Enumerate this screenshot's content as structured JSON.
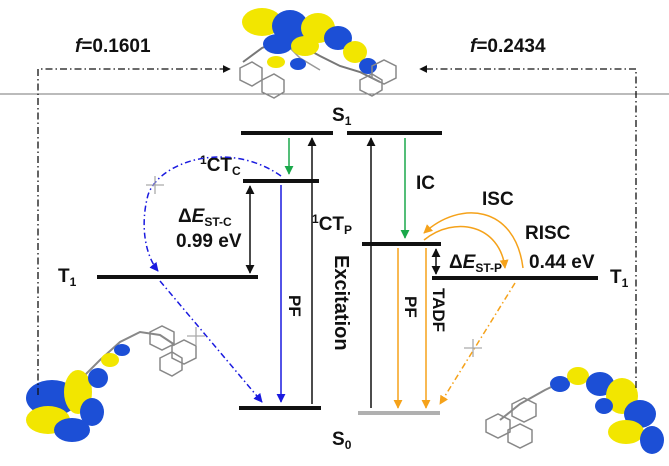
{
  "oscillator": {
    "left": {
      "symbol": "f",
      "value": "=0.1601"
    },
    "right": {
      "symbol": "f",
      "value": "=0.2434"
    }
  },
  "states": {
    "s1_main": "S",
    "s1_sub": "1",
    "s0_main": "S",
    "s0_sub": "0",
    "t1_left_main": "T",
    "t1_left_sub": "1",
    "t1_right_main": "T",
    "t1_right_sub": "1",
    "ct_c_sup": "1",
    "ct_c_main": "CT",
    "ct_c_sub": "C",
    "ct_p_sup": "1",
    "ct_p_main": "CT",
    "ct_p_sub": "P"
  },
  "gaps": {
    "left": {
      "delta": "Δ",
      "e": "E",
      "sub": "ST-C",
      "value": "0.99 eV"
    },
    "right": {
      "delta": "Δ",
      "e": "E",
      "sub": "ST-P",
      "value": "0.44 eV"
    }
  },
  "processes": {
    "excitation": "Excitation",
    "ic": "IC",
    "isc": "ISC",
    "risc": "RISC",
    "pf_left": "PF",
    "pf_right": "PF",
    "tadf": "TADF"
  },
  "colors": {
    "blue": "#1a1adf",
    "green": "#1aa84a",
    "orange": "#f5a21a",
    "black": "#111111",
    "gray": "#b0b0b0",
    "orbital_yellow": "#f2e600",
    "orbital_blue": "#1c4fd6"
  }
}
